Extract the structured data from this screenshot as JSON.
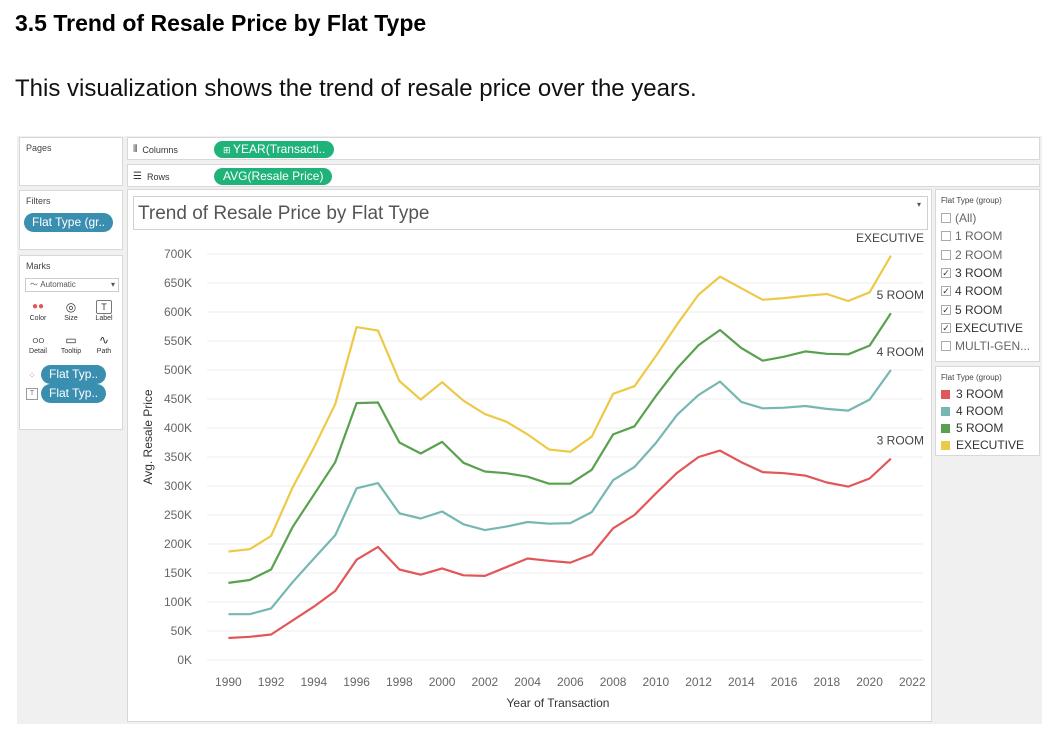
{
  "document": {
    "heading": "3.5 Trend of Resale Price by Flat Type",
    "paragraph": "This visualization shows the trend of resale price over the years."
  },
  "panels": {
    "pages_label": "Pages",
    "filters_label": "Filters",
    "filter_pill": "Flat Type (gr..",
    "marks_label": "Marks",
    "marks_type": "Automatic",
    "mark_buttons": [
      {
        "label": "Color",
        "icon": "color-dots-icon"
      },
      {
        "label": "Size",
        "icon": "size-icon"
      },
      {
        "label": "Label",
        "icon": "label-icon"
      },
      {
        "label": "Detail",
        "icon": "detail-icon"
      },
      {
        "label": "Tooltip",
        "icon": "tooltip-icon"
      },
      {
        "label": "Path",
        "icon": "path-icon"
      }
    ],
    "mark_pills": [
      {
        "label": "Flat Typ..",
        "icon": "color-dots-icon"
      },
      {
        "label": "Flat Typ..",
        "icon": "label-icon"
      }
    ]
  },
  "shelves": {
    "columns_label": "Columns",
    "columns_pill": "YEAR(Transacti..",
    "rows_label": "Rows",
    "rows_pill": "AVG(Resale Price)"
  },
  "filter_card": {
    "title": "Flat Type (group)",
    "items": [
      {
        "label": "(All)",
        "checked": false
      },
      {
        "label": "1 ROOM",
        "checked": false
      },
      {
        "label": "2 ROOM",
        "checked": false
      },
      {
        "label": "3 ROOM",
        "checked": true
      },
      {
        "label": "4 ROOM",
        "checked": true
      },
      {
        "label": "5 ROOM",
        "checked": true
      },
      {
        "label": "EXECUTIVE",
        "checked": true
      },
      {
        "label": "MULTI-GEN...",
        "checked": false
      }
    ]
  },
  "legend_card": {
    "title": "Flat Type (group)",
    "items": [
      {
        "label": "3 ROOM",
        "color": "#e15759"
      },
      {
        "label": "4 ROOM",
        "color": "#76b7b2"
      },
      {
        "label": "5 ROOM",
        "color": "#59a14f"
      },
      {
        "label": "EXECUTIVE",
        "color": "#edc948"
      }
    ]
  },
  "chart_data": {
    "type": "line",
    "title": "Trend of Resale Price by Flat Type",
    "xlabel": "Year of Transaction",
    "ylabel": "Avg. Resale Price",
    "xlim": [
      1989,
      2022.5
    ],
    "ylim": [
      0,
      700000
    ],
    "x_ticks": [
      1990,
      1992,
      1994,
      1996,
      1998,
      2000,
      2002,
      2004,
      2006,
      2008,
      2010,
      2012,
      2014,
      2016,
      2018,
      2020,
      2022
    ],
    "y_ticks": [
      {
        "value": 0,
        "label": "0K"
      },
      {
        "value": 50000,
        "label": "50K"
      },
      {
        "value": 100000,
        "label": "100K"
      },
      {
        "value": 150000,
        "label": "150K"
      },
      {
        "value": 200000,
        "label": "200K"
      },
      {
        "value": 250000,
        "label": "250K"
      },
      {
        "value": 300000,
        "label": "300K"
      },
      {
        "value": 350000,
        "label": "350K"
      },
      {
        "value": 400000,
        "label": "400K"
      },
      {
        "value": 450000,
        "label": "450K"
      },
      {
        "value": 500000,
        "label": "500K"
      },
      {
        "value": 550000,
        "label": "550K"
      },
      {
        "value": 600000,
        "label": "600K"
      },
      {
        "value": 650000,
        "label": "650K"
      },
      {
        "value": 700000,
        "label": "700K"
      }
    ],
    "grid": "horizontal",
    "x": [
      1990,
      1991,
      1992,
      1993,
      1994,
      1995,
      1996,
      1997,
      1998,
      1999,
      2000,
      2001,
      2002,
      2003,
      2004,
      2005,
      2006,
      2007,
      2008,
      2009,
      2010,
      2011,
      2012,
      2013,
      2014,
      2015,
      2016,
      2017,
      2018,
      2019,
      2020,
      2021
    ],
    "series": [
      {
        "name": "3 ROOM",
        "color": "#e15759",
        "values": [
          38000,
          40000,
          44000,
          68000,
          92000,
          119000,
          173000,
          195000,
          156000,
          147000,
          158000,
          146000,
          145000,
          160000,
          175000,
          171000,
          168000,
          182000,
          227000,
          250000,
          287000,
          323000,
          350000,
          361000,
          341000,
          324000,
          322000,
          318000,
          306000,
          299000,
          313000,
          347000
        ]
      },
      {
        "name": "4 ROOM",
        "color": "#76b7b2",
        "values": [
          79000,
          79000,
          89000,
          134000,
          175000,
          215000,
          296000,
          305000,
          253000,
          244000,
          256000,
          234000,
          224000,
          230000,
          238000,
          235000,
          236000,
          255000,
          310000,
          333000,
          374000,
          423000,
          457000,
          480000,
          445000,
          434000,
          435000,
          438000,
          433000,
          430000,
          449000,
          500000
        ]
      },
      {
        "name": "5 ROOM",
        "color": "#59a14f",
        "values": [
          133000,
          138000,
          156000,
          229000,
          285000,
          341000,
          443000,
          444000,
          375000,
          356000,
          376000,
          340000,
          325000,
          322000,
          316000,
          304000,
          304000,
          328000,
          389000,
          403000,
          455000,
          503000,
          543000,
          569000,
          538000,
          516000,
          523000,
          532000,
          528000,
          527000,
          542000,
          598000
        ]
      },
      {
        "name": "EXECUTIVE",
        "color": "#edc948",
        "values": [
          187000,
          191000,
          214000,
          297000,
          366000,
          441000,
          574000,
          568000,
          481000,
          449000,
          479000,
          447000,
          424000,
          411000,
          389000,
          363000,
          359000,
          385000,
          459000,
          472000,
          524000,
          579000,
          630000,
          661000,
          641000,
          621000,
          624000,
          628000,
          631000,
          619000,
          634000,
          697000
        ]
      }
    ],
    "line_labels": [
      "EXECUTIVE",
      "5 ROOM",
      "4 ROOM",
      "3 ROOM"
    ]
  }
}
